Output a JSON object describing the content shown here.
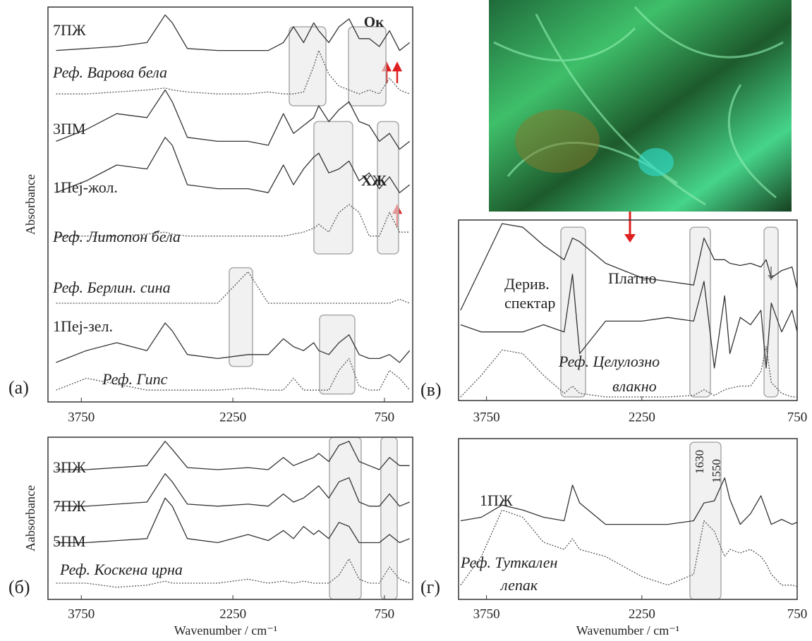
{
  "chart_data": [
    {
      "type": "line",
      "panel_label": "(а)",
      "ylabel": "Absorbance",
      "x": [
        4000,
        3700,
        3400,
        3100,
        2920,
        2850,
        2700,
        2400,
        2100,
        1900,
        1750,
        1650,
        1550,
        1450,
        1400,
        1300,
        1200,
        1100,
        1000,
        900,
        800,
        700,
        600,
        500
      ],
      "xlim": [
        4080,
        470
      ],
      "xticks": [
        3750,
        2250,
        750
      ],
      "ylim": [
        0,
        10
      ],
      "series": [
        {
          "name": "7ПЖ",
          "color": "#333333",
          "line_style": "solid",
          "values": [
            8.9,
            8.95,
            9.0,
            9.1,
            9.8,
            9.6,
            8.95,
            8.9,
            8.9,
            8.9,
            9.1,
            9.5,
            9.1,
            9.6,
            9.4,
            9.1,
            9.5,
            9.7,
            9.2,
            9.2,
            9.0,
            9.4,
            8.9,
            9.1
          ]
        },
        {
          "name": "Реф. Варова бела",
          "color": "#555555",
          "line_style": "dotted",
          "values": [
            7.8,
            7.8,
            7.85,
            7.9,
            7.95,
            7.9,
            7.85,
            7.8,
            7.8,
            7.85,
            7.8,
            7.8,
            7.85,
            8.5,
            8.9,
            8.3,
            8.0,
            7.9,
            7.8,
            7.9,
            7.8,
            8.2,
            7.9,
            7.8
          ]
        },
        {
          "name": "3ПМ",
          "color": "#333333",
          "line_style": "solid",
          "values": [
            6.6,
            6.9,
            7.3,
            7.2,
            7.9,
            7.6,
            6.7,
            6.6,
            6.6,
            6.5,
            7.3,
            6.8,
            7.0,
            7.2,
            7.5,
            7.1,
            7.4,
            7.6,
            7.1,
            7.0,
            6.6,
            6.8,
            6.4,
            6.6
          ]
        },
        {
          "name": "1Пеј-жол.",
          "color": "#333333",
          "line_style": "solid",
          "values": [
            5.3,
            5.6,
            6.0,
            5.9,
            6.7,
            6.5,
            5.5,
            5.4,
            5.4,
            5.3,
            6.0,
            5.5,
            5.9,
            6.2,
            6.3,
            5.8,
            5.9,
            6.1,
            5.6,
            5.8,
            5.4,
            5.7,
            5.3,
            5.5
          ]
        },
        {
          "name": "Реф. Литопон бела",
          "color": "#555555",
          "line_style": "dotted",
          "values": [
            4.2,
            4.2,
            4.2,
            4.25,
            4.3,
            4.25,
            4.2,
            4.2,
            4.2,
            4.2,
            4.2,
            4.25,
            4.3,
            4.4,
            4.5,
            4.3,
            4.8,
            5.0,
            4.8,
            4.2,
            4.2,
            4.8,
            4.3,
            4.3
          ]
        },
        {
          "name": "Реф. Берлин. сина",
          "color": "#555555",
          "line_style": "dotted",
          "values": [
            2.5,
            2.5,
            2.5,
            2.5,
            2.5,
            2.5,
            2.5,
            2.5,
            3.3,
            2.5,
            2.5,
            2.5,
            2.5,
            2.5,
            2.5,
            2.5,
            2.5,
            2.5,
            2.5,
            2.5,
            2.5,
            2.5,
            2.6,
            2.5
          ]
        },
        {
          "name": "1Пеј-зел.",
          "color": "#333333",
          "line_style": "solid",
          "values": [
            1.0,
            1.3,
            1.5,
            1.3,
            2.0,
            1.8,
            1.2,
            1.1,
            1.2,
            1.2,
            1.6,
            1.4,
            1.3,
            1.5,
            1.3,
            1.2,
            1.5,
            1.7,
            1.2,
            1.1,
            1.1,
            1.2,
            1.0,
            1.3
          ]
        },
        {
          "name": "Реф. Гипс",
          "color": "#555555",
          "line_style": "dotted",
          "values": [
            0.3,
            0.6,
            0.45,
            0.3,
            0.3,
            0.3,
            0.3,
            0.3,
            0.35,
            0.3,
            0.3,
            0.6,
            0.3,
            0.3,
            0.3,
            0.3,
            0.8,
            1.1,
            0.4,
            0.3,
            0.3,
            0.8,
            0.6,
            0.3
          ]
        }
      ],
      "bands": [
        {
          "x": [
            1692,
            1329
          ],
          "y": [
            7.5,
            9.5
          ]
        },
        {
          "x": [
            1105,
            735
          ],
          "y": [
            7.5,
            9.5
          ]
        },
        {
          "x": [
            1448,
            1064
          ],
          "y": [
            3.75,
            7.1
          ]
        },
        {
          "x": [
            819,
            610
          ],
          "y": [
            3.75,
            7.1
          ]
        },
        {
          "x": [
            2286,
            2055
          ],
          "y": [
            0.9,
            3.4
          ]
        },
        {
          "x": [
            1392,
            1043
          ],
          "y": [
            0.2,
            2.2
          ]
        }
      ],
      "annotations": [
        "Ок",
        "ХЖ"
      ]
    },
    {
      "type": "line",
      "panel_label": "(б)",
      "ylabel": "Aabsorbance",
      "xlabel": "Wavenumber / cm⁻¹",
      "x": [
        4000,
        3700,
        3400,
        3100,
        2920,
        2850,
        2700,
        2400,
        2100,
        1900,
        1750,
        1650,
        1550,
        1450,
        1400,
        1300,
        1200,
        1100,
        1000,
        900,
        800,
        700,
        600,
        500
      ],
      "xlim": [
        4080,
        470
      ],
      "xticks": [
        3750,
        2250,
        750
      ],
      "ylim": [
        0,
        4
      ],
      "series": [
        {
          "name": "3ПЖ",
          "color": "#333333",
          "line_style": "solid",
          "values": [
            3.2,
            3.2,
            3.25,
            3.3,
            3.9,
            3.7,
            3.25,
            3.2,
            3.25,
            3.2,
            3.5,
            3.3,
            3.4,
            3.5,
            3.6,
            3.4,
            3.8,
            3.9,
            3.4,
            3.3,
            3.2,
            3.5,
            3.3,
            3.3
          ]
        },
        {
          "name": "7ПЖ",
          "color": "#333333",
          "line_style": "solid",
          "values": [
            2.3,
            2.3,
            2.35,
            2.4,
            3.1,
            2.9,
            2.35,
            2.3,
            2.35,
            2.3,
            2.6,
            2.4,
            2.5,
            2.7,
            2.8,
            2.5,
            2.9,
            3.0,
            2.4,
            2.3,
            2.3,
            2.6,
            2.3,
            2.4
          ]
        },
        {
          "name": "5ПМ",
          "color": "#333333",
          "line_style": "solid",
          "values": [
            1.4,
            1.4,
            1.45,
            1.5,
            2.5,
            2.3,
            1.5,
            1.4,
            1.6,
            1.45,
            1.7,
            1.5,
            1.8,
            1.6,
            1.7,
            1.5,
            1.9,
            1.8,
            1.4,
            1.4,
            1.4,
            1.6,
            1.4,
            1.5
          ]
        },
        {
          "name": "Реф. Коскена црна",
          "color": "#555555",
          "line_style": "dotted",
          "values": [
            0.4,
            0.4,
            0.3,
            0.35,
            0.45,
            0.4,
            0.4,
            0.4,
            0.5,
            0.4,
            0.45,
            0.4,
            0.45,
            0.4,
            0.4,
            0.4,
            0.6,
            1.0,
            0.5,
            0.4,
            0.4,
            0.8,
            0.5,
            0.4
          ]
        }
      ],
      "bands": [
        {
          "x": [
            1294,
            980
          ],
          "y": [
            0,
            4
          ]
        },
        {
          "x": [
            785,
            623
          ],
          "y": [
            0,
            4
          ]
        }
      ]
    },
    {
      "type": "line",
      "panel_label": "(в)",
      "x": [
        4000,
        3800,
        3600,
        3400,
        3200,
        3000,
        2920,
        2850,
        2600,
        2250,
        2000,
        1750,
        1650,
        1550,
        1450,
        1400,
        1300,
        1200,
        1100,
        1050,
        1000,
        900,
        800,
        750
      ],
      "xlim": [
        4020,
        750
      ],
      "xticks": [
        3750,
        2250,
        750
      ],
      "ylim": [
        0,
        5
      ],
      "series": [
        {
          "name": "Платно",
          "color": "#333333",
          "line_style": "solid",
          "values": [
            2.5,
            3.7,
            4.9,
            4.8,
            4.3,
            3.9,
            4.5,
            4.4,
            3.8,
            3.4,
            3.3,
            3.2,
            4.5,
            3.9,
            3.9,
            3.8,
            3.74,
            3.8,
            3.7,
            3.9,
            3.4,
            3.6,
            3.7,
            3.1
          ]
        },
        {
          "name": "Дерив. спектар",
          "color": "#333333",
          "line_style": "solid",
          "values": [
            2.1,
            1.9,
            1.9,
            1.9,
            2.1,
            1.9,
            3.5,
            1.3,
            2.2,
            2.2,
            2.3,
            2.2,
            3.3,
            0.9,
            2.9,
            1.3,
            2.3,
            2.1,
            2.5,
            0.9,
            2.7,
            1.9,
            2.5,
            1.9
          ]
        },
        {
          "name": "Реф. Целулозно влакно",
          "color": "#555555",
          "line_style": "dotted",
          "values": [
            0.1,
            0.7,
            1.4,
            1.3,
            0.7,
            0.2,
            0.4,
            0.2,
            0.1,
            0.1,
            0.1,
            0.14,
            0.3,
            0.14,
            0.3,
            0.34,
            0.4,
            0.4,
            0.8,
            1.5,
            0.5,
            0.2,
            0.1,
            0.1
          ]
        }
      ],
      "bands": [
        {
          "x": [
            3032,
            2794
          ],
          "y": [
            0.1,
            4.8
          ]
        },
        {
          "x": [
            1786,
            1588
          ],
          "y": [
            0.1,
            4.8
          ]
        },
        {
          "x": [
            1070,
            934
          ],
          "y": [
            0.1,
            4.8
          ]
        }
      ]
    },
    {
      "type": "line",
      "panel_label": "(г)",
      "xlabel": "Wavenumber / cm⁻¹",
      "x": [
        4000,
        3800,
        3600,
        3400,
        3200,
        3000,
        2920,
        2850,
        2600,
        2250,
        2000,
        1750,
        1650,
        1550,
        1450,
        1400,
        1300,
        1200,
        1100,
        1050,
        1000,
        900,
        800,
        750
      ],
      "xlim": [
        4020,
        750
      ],
      "xticks": [
        3750,
        2250,
        750
      ],
      "ylim": [
        0,
        4.5
      ],
      "series": [
        {
          "name": "1ПЖ",
          "color": "#333333",
          "line_style": "solid",
          "values": [
            2.2,
            2.3,
            2.64,
            2.5,
            2.3,
            2.2,
            3.2,
            2.7,
            2.1,
            2.1,
            2.1,
            2.2,
            2.7,
            2.76,
            3.4,
            2.8,
            2.1,
            2.4,
            2.9,
            2.5,
            2.1,
            2.24,
            2.1,
            2.16
          ]
        },
        {
          "name": "Реф. Туткален лепак",
          "color": "#555555",
          "line_style": "dotted",
          "values": [
            0.4,
            1.2,
            2.5,
            2.3,
            1.6,
            1.4,
            1.7,
            1.4,
            1.2,
            0.64,
            0.4,
            0.7,
            2.2,
            1.9,
            1.2,
            1.4,
            1.3,
            1.4,
            1.2,
            1.0,
            0.7,
            0.4,
            0.4,
            0.36
          ]
        }
      ],
      "bands": [
        {
          "x": [
            1786,
            1486
          ],
          "y": [
            0,
            4.4
          ]
        }
      ],
      "annotations": [
        "1630",
        "1550"
      ]
    }
  ]
}
